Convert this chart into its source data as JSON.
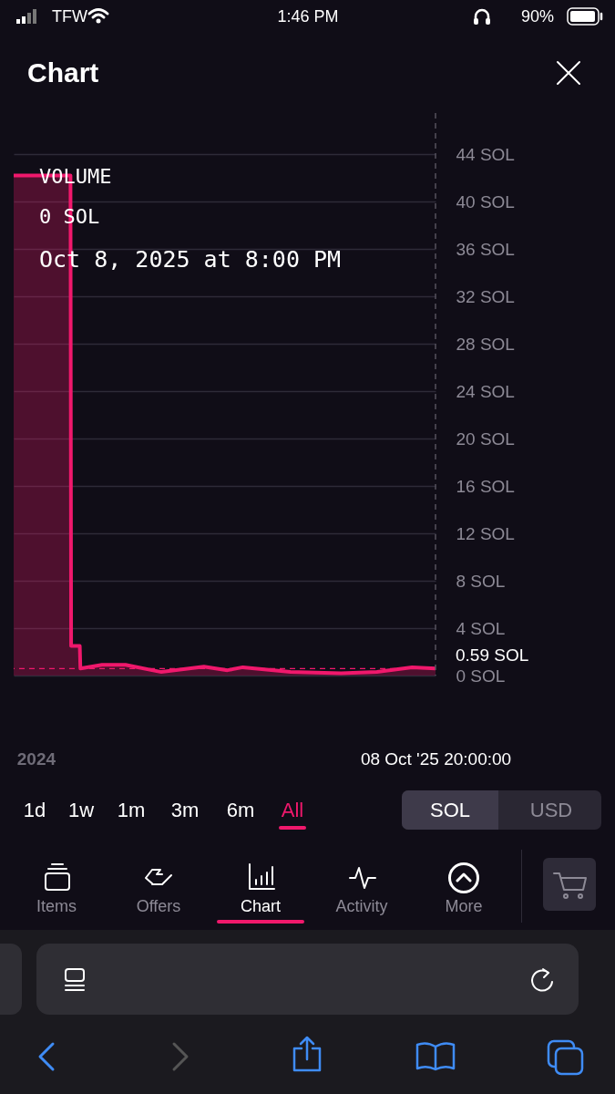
{
  "chart_data": {
    "type": "area",
    "title": "Chart",
    "x": [
      "2023-11-26",
      "2024-02-26",
      "2024-02-27",
      "2024-03-12",
      "2024-03-13",
      "2024-04-17",
      "2024-05-25",
      "2024-07-22",
      "2024-09-29",
      "2024-11-06",
      "2024-12-01",
      "2025-02-16",
      "2025-05-09",
      "2025-07-06",
      "2025-09-01",
      "2025-10-08T20:00"
    ],
    "series": [
      {
        "color": "#f0186c",
        "values": [
          42.2,
          42.2,
          2.5,
          2.5,
          0.6,
          0.9,
          0.9,
          0.3,
          0.75,
          0.45,
          0.7,
          0.3,
          0.2,
          0.3,
          0.7,
          0.59
        ]
      }
    ],
    "xlim": [
      "2023-11-26",
      "2025-10-08T20:00"
    ],
    "xticks": [
      {
        "value": "2024-01-01",
        "label": "2024"
      },
      {
        "value": "2025-10-08T20:00",
        "label": "08 Oct '25  20:00:00"
      }
    ],
    "ylim": [
      0,
      44
    ],
    "yticks": [
      {
        "value": 0,
        "label": "0 SOL"
      },
      {
        "value": 4,
        "label": "4 SOL"
      },
      {
        "value": 8,
        "label": "8 SOL"
      },
      {
        "value": 12,
        "label": "12 SOL"
      },
      {
        "value": 16,
        "label": "16 SOL"
      },
      {
        "value": 20,
        "label": "20 SOL"
      },
      {
        "value": 24,
        "label": "24 SOL"
      },
      {
        "value": 28,
        "label": "28 SOL"
      },
      {
        "value": 32,
        "label": "32 SOL"
      },
      {
        "value": 36,
        "label": "36 SOL"
      },
      {
        "value": 40,
        "label": "40 SOL"
      },
      {
        "value": 44,
        "label": "44 SOL"
      }
    ],
    "grid": "y",
    "ref_lines": [
      {
        "axis": "y",
        "value": 0.59,
        "label": "0.59 SOL",
        "color": "#f0186c",
        "line_style": "dashed"
      },
      {
        "axis": "x",
        "value": "2025-10-08T20:00",
        "color": "#55525e",
        "line_style": "dashed"
      }
    ],
    "annotations": [
      "VOLUME",
      "0 SOL",
      "Oct 8, 2025 at 8:00 PM",
      "1d",
      "1w",
      "1m",
      "3m",
      "6m",
      "All",
      "SOL",
      "USD",
      "Items",
      "Offers",
      "Chart",
      "Activity",
      "More",
      "TFW",
      "1:46 PM",
      "90%"
    ]
  }
}
